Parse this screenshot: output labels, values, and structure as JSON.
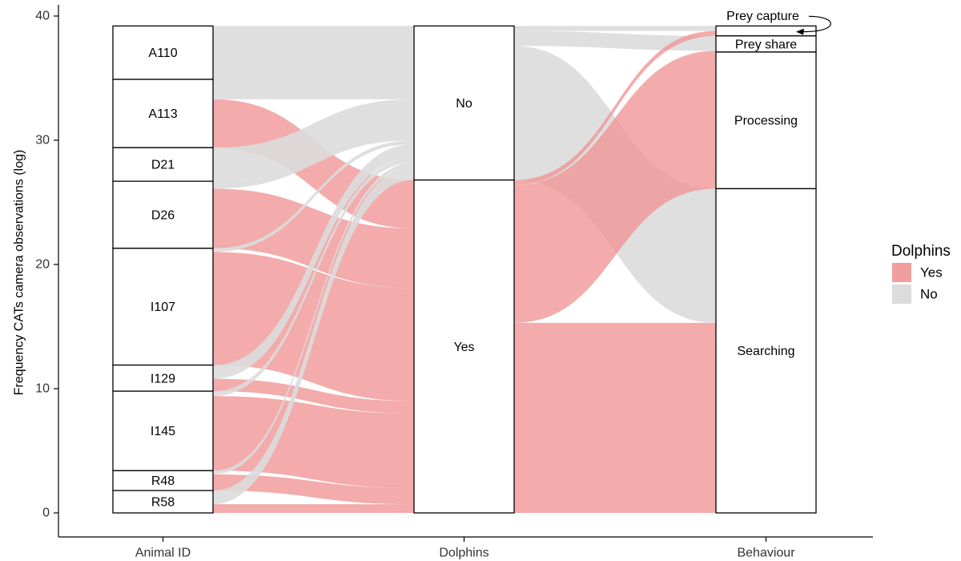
{
  "chart_data": {
    "type": "alluvial",
    "ylabel": "Frequency CATs camera observations (log)",
    "ylim": [
      0,
      40
    ],
    "yticks": [
      0,
      10,
      20,
      30,
      40
    ],
    "grid": false,
    "axes": [
      "Animal ID",
      "Dolphins",
      "Behaviour"
    ],
    "legend": {
      "title": "Dolphins",
      "position": "right",
      "entries": [
        {
          "label": "Yes",
          "color": "#ef9393"
        },
        {
          "label": "No",
          "color": "#dcdcdc"
        }
      ]
    },
    "nodes": {
      "animal": [
        {
          "label": "A110",
          "lo": 34.9,
          "hi": 39.2
        },
        {
          "label": "A113",
          "lo": 29.4,
          "hi": 34.9
        },
        {
          "label": "D21",
          "lo": 26.7,
          "hi": 29.4
        },
        {
          "label": "D26",
          "lo": 21.3,
          "hi": 26.7
        },
        {
          "label": "I107",
          "lo": 11.9,
          "hi": 21.3
        },
        {
          "label": "I129",
          "lo": 9.8,
          "hi": 11.9
        },
        {
          "label": "I145",
          "lo": 3.4,
          "hi": 9.8
        },
        {
          "label": "R48",
          "lo": 1.8,
          "hi": 3.4
        },
        {
          "label": "R58",
          "lo": 0.0,
          "hi": 1.8
        }
      ],
      "dolphins": [
        {
          "label": "No",
          "lo": 26.8,
          "hi": 39.2
        },
        {
          "label": "Yes",
          "lo": 0.0,
          "hi": 26.8
        }
      ],
      "behaviour": [
        {
          "label": "Prey capture",
          "lo": 38.4,
          "hi": 39.2,
          "callout": true
        },
        {
          "label": "Prey share",
          "lo": 37.1,
          "hi": 38.4
        },
        {
          "label": "Processing",
          "lo": 26.1,
          "hi": 37.1
        },
        {
          "label": "Searching",
          "lo": 0.0,
          "hi": 26.1
        }
      ]
    },
    "flows_animal_to_dolphins": [
      {
        "from": "A110",
        "to": "No",
        "value": 4.3,
        "dolphins": "No"
      },
      {
        "from": "A113",
        "to": "No",
        "value": 1.6,
        "dolphins": "No"
      },
      {
        "from": "A113",
        "to": "Yes",
        "value": 3.9,
        "dolphins": "Yes"
      },
      {
        "from": "D21",
        "to": "No",
        "value": 2.7,
        "dolphins": "No"
      },
      {
        "from": "D26",
        "to": "No",
        "value": 0.6,
        "dolphins": "No"
      },
      {
        "from": "D26",
        "to": "Yes",
        "value": 4.8,
        "dolphins": "Yes"
      },
      {
        "from": "I107",
        "to": "No",
        "value": 0.3,
        "dolphins": "No"
      },
      {
        "from": "I107",
        "to": "Yes",
        "value": 9.1,
        "dolphins": "Yes"
      },
      {
        "from": "I129",
        "to": "No",
        "value": 1.1,
        "dolphins": "No"
      },
      {
        "from": "I129",
        "to": "Yes",
        "value": 1.0,
        "dolphins": "Yes"
      },
      {
        "from": "I145",
        "to": "No",
        "value": 0.4,
        "dolphins": "No"
      },
      {
        "from": "I145",
        "to": "Yes",
        "value": 6.0,
        "dolphins": "Yes"
      },
      {
        "from": "R48",
        "to": "No",
        "value": 0.3,
        "dolphins": "No"
      },
      {
        "from": "R48",
        "to": "Yes",
        "value": 1.3,
        "dolphins": "Yes"
      },
      {
        "from": "R58",
        "to": "No",
        "value": 1.1,
        "dolphins": "No"
      },
      {
        "from": "R58",
        "to": "Yes",
        "value": 0.7,
        "dolphins": "Yes"
      }
    ],
    "flows_dolphins_to_behaviour": [
      {
        "from": "No",
        "to": "Prey capture",
        "value": 0.4,
        "dolphins": "No"
      },
      {
        "from": "No",
        "to": "Prey share",
        "value": 1.2,
        "dolphins": "No"
      },
      {
        "from": "No",
        "to": "Processing",
        "value": 0.0,
        "dolphins": "No"
      },
      {
        "from": "No",
        "to": "Searching",
        "value": 10.8,
        "dolphins": "No"
      },
      {
        "from": "Yes",
        "to": "Prey capture",
        "value": 0.4,
        "dolphins": "Yes"
      },
      {
        "from": "Yes",
        "to": "Prey share",
        "value": 0.1,
        "dolphins": "Yes"
      },
      {
        "from": "Yes",
        "to": "Processing",
        "value": 11.0,
        "dolphins": "Yes"
      },
      {
        "from": "Yes",
        "to": "Searching",
        "value": 15.3,
        "dolphins": "Yes"
      }
    ]
  }
}
